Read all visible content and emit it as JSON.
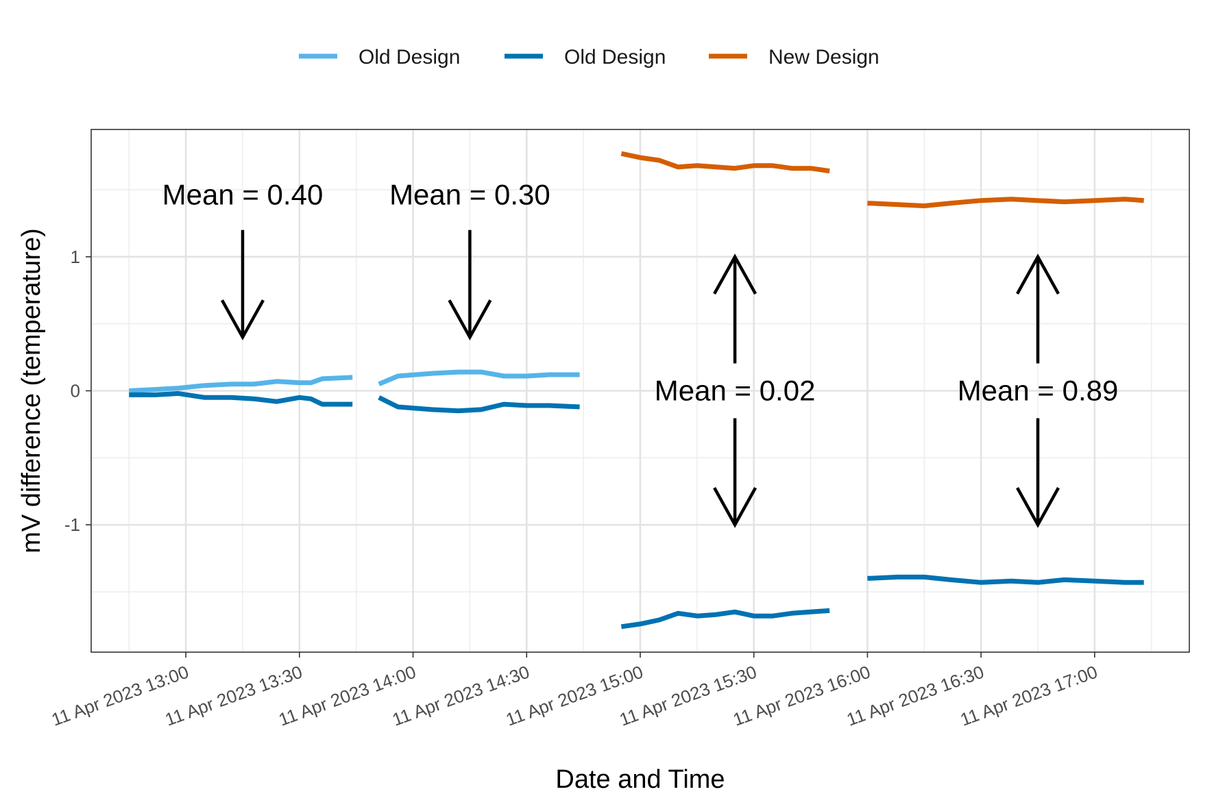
{
  "chart_data": {
    "type": "line",
    "xlabel": "Date and Time",
    "ylabel": "mV difference (temperature)",
    "x_ticks": [
      "11 Apr 2023 13:00",
      "11 Apr 2023 13:30",
      "11 Apr 2023 14:00",
      "11 Apr 2023 14:30",
      "11 Apr 2023 15:00",
      "11 Apr 2023 15:30",
      "11 Apr 2023 16:00",
      "11 Apr 2023 16:30",
      "11 Apr 2023 17:00"
    ],
    "xlim": [
      "11 Apr 2023 12:35",
      "11 Apr 2023 17:25"
    ],
    "y_ticks": [
      -1,
      0,
      1
    ],
    "y_tick_labels": [
      "-1",
      "0",
      "1"
    ],
    "ylim": [
      -1.95,
      1.95
    ],
    "grid": true,
    "legend_position": "top",
    "series": [
      {
        "name": "Old Design",
        "color": "#56B4E9",
        "segments": [
          [
            {
              "x": "11 Apr 2023 12:45",
              "y": 0.0
            },
            {
              "x": "11 Apr 2023 12:52",
              "y": 0.01
            },
            {
              "x": "11 Apr 2023 12:58",
              "y": 0.02
            },
            {
              "x": "11 Apr 2023 13:05",
              "y": 0.04
            },
            {
              "x": "11 Apr 2023 13:12",
              "y": 0.05
            },
            {
              "x": "11 Apr 2023 13:18",
              "y": 0.05
            },
            {
              "x": "11 Apr 2023 13:24",
              "y": 0.07
            },
            {
              "x": "11 Apr 2023 13:30",
              "y": 0.06
            },
            {
              "x": "11 Apr 2023 13:33",
              "y": 0.06
            },
            {
              "x": "11 Apr 2023 13:36",
              "y": 0.09
            },
            {
              "x": "11 Apr 2023 13:44",
              "y": 0.1
            }
          ],
          [
            {
              "x": "11 Apr 2023 13:51",
              "y": 0.05
            },
            {
              "x": "11 Apr 2023 13:56",
              "y": 0.11
            },
            {
              "x": "11 Apr 2023 14:05",
              "y": 0.13
            },
            {
              "x": "11 Apr 2023 14:12",
              "y": 0.14
            },
            {
              "x": "11 Apr 2023 14:18",
              "y": 0.14
            },
            {
              "x": "11 Apr 2023 14:24",
              "y": 0.11
            },
            {
              "x": "11 Apr 2023 14:30",
              "y": 0.11
            },
            {
              "x": "11 Apr 2023 14:36",
              "y": 0.12
            },
            {
              "x": "11 Apr 2023 14:44",
              "y": 0.12
            }
          ]
        ]
      },
      {
        "name": "Old Design",
        "color": "#0072B2",
        "segments": [
          [
            {
              "x": "11 Apr 2023 12:45",
              "y": -0.03
            },
            {
              "x": "11 Apr 2023 12:52",
              "y": -0.03
            },
            {
              "x": "11 Apr 2023 12:58",
              "y": -0.02
            },
            {
              "x": "11 Apr 2023 13:05",
              "y": -0.05
            },
            {
              "x": "11 Apr 2023 13:12",
              "y": -0.05
            },
            {
              "x": "11 Apr 2023 13:18",
              "y": -0.06
            },
            {
              "x": "11 Apr 2023 13:24",
              "y": -0.08
            },
            {
              "x": "11 Apr 2023 13:30",
              "y": -0.05
            },
            {
              "x": "11 Apr 2023 13:33",
              "y": -0.06
            },
            {
              "x": "11 Apr 2023 13:36",
              "y": -0.1
            },
            {
              "x": "11 Apr 2023 13:44",
              "y": -0.1
            }
          ],
          [
            {
              "x": "11 Apr 2023 13:51",
              "y": -0.05
            },
            {
              "x": "11 Apr 2023 13:56",
              "y": -0.12
            },
            {
              "x": "11 Apr 2023 14:05",
              "y": -0.14
            },
            {
              "x": "11 Apr 2023 14:12",
              "y": -0.15
            },
            {
              "x": "11 Apr 2023 14:18",
              "y": -0.14
            },
            {
              "x": "11 Apr 2023 14:24",
              "y": -0.1
            },
            {
              "x": "11 Apr 2023 14:30",
              "y": -0.11
            },
            {
              "x": "11 Apr 2023 14:36",
              "y": -0.11
            },
            {
              "x": "11 Apr 2023 14:44",
              "y": -0.12
            }
          ],
          [
            {
              "x": "11 Apr 2023 14:55",
              "y": -1.76
            },
            {
              "x": "11 Apr 2023 15:00",
              "y": -1.74
            },
            {
              "x": "11 Apr 2023 15:05",
              "y": -1.71
            },
            {
              "x": "11 Apr 2023 15:10",
              "y": -1.66
            },
            {
              "x": "11 Apr 2023 15:15",
              "y": -1.68
            },
            {
              "x": "11 Apr 2023 15:20",
              "y": -1.67
            },
            {
              "x": "11 Apr 2023 15:25",
              "y": -1.65
            },
            {
              "x": "11 Apr 2023 15:30",
              "y": -1.68
            },
            {
              "x": "11 Apr 2023 15:35",
              "y": -1.68
            },
            {
              "x": "11 Apr 2023 15:40",
              "y": -1.66
            },
            {
              "x": "11 Apr 2023 15:45",
              "y": -1.65
            },
            {
              "x": "11 Apr 2023 15:50",
              "y": -1.64
            }
          ],
          [
            {
              "x": "11 Apr 2023 16:00",
              "y": -1.4
            },
            {
              "x": "11 Apr 2023 16:08",
              "y": -1.39
            },
            {
              "x": "11 Apr 2023 16:15",
              "y": -1.39
            },
            {
              "x": "11 Apr 2023 16:22",
              "y": -1.41
            },
            {
              "x": "11 Apr 2023 16:30",
              "y": -1.43
            },
            {
              "x": "11 Apr 2023 16:38",
              "y": -1.42
            },
            {
              "x": "11 Apr 2023 16:45",
              "y": -1.43
            },
            {
              "x": "11 Apr 2023 16:52",
              "y": -1.41
            },
            {
              "x": "11 Apr 2023 17:00",
              "y": -1.42
            },
            {
              "x": "11 Apr 2023 17:08",
              "y": -1.43
            },
            {
              "x": "11 Apr 2023 17:13",
              "y": -1.43
            }
          ]
        ]
      },
      {
        "name": "New Design",
        "color": "#D55E00",
        "segments": [
          [
            {
              "x": "11 Apr 2023 14:55",
              "y": 1.77
            },
            {
              "x": "11 Apr 2023 15:00",
              "y": 1.74
            },
            {
              "x": "11 Apr 2023 15:05",
              "y": 1.72
            },
            {
              "x": "11 Apr 2023 15:10",
              "y": 1.67
            },
            {
              "x": "11 Apr 2023 15:15",
              "y": 1.68
            },
            {
              "x": "11 Apr 2023 15:20",
              "y": 1.67
            },
            {
              "x": "11 Apr 2023 15:25",
              "y": 1.66
            },
            {
              "x": "11 Apr 2023 15:30",
              "y": 1.68
            },
            {
              "x": "11 Apr 2023 15:35",
              "y": 1.68
            },
            {
              "x": "11 Apr 2023 15:40",
              "y": 1.66
            },
            {
              "x": "11 Apr 2023 15:45",
              "y": 1.66
            },
            {
              "x": "11 Apr 2023 15:50",
              "y": 1.64
            }
          ],
          [
            {
              "x": "11 Apr 2023 16:00",
              "y": 1.4
            },
            {
              "x": "11 Apr 2023 16:08",
              "y": 1.39
            },
            {
              "x": "11 Apr 2023 16:15",
              "y": 1.38
            },
            {
              "x": "11 Apr 2023 16:22",
              "y": 1.4
            },
            {
              "x": "11 Apr 2023 16:30",
              "y": 1.42
            },
            {
              "x": "11 Apr 2023 16:38",
              "y": 1.43
            },
            {
              "x": "11 Apr 2023 16:45",
              "y": 1.42
            },
            {
              "x": "11 Apr 2023 16:52",
              "y": 1.41
            },
            {
              "x": "11 Apr 2023 17:00",
              "y": 1.42
            },
            {
              "x": "11 Apr 2023 17:08",
              "y": 1.43
            },
            {
              "x": "11 Apr 2023 17:13",
              "y": 1.42
            }
          ]
        ]
      }
    ],
    "annotations": [
      {
        "text": "Mean = 0.40",
        "arrow": "down",
        "x": "11 Apr 2023 13:15",
        "arrow_from_y": 1.2,
        "arrow_to_y": 0.4
      },
      {
        "text": "Mean = 0.30",
        "arrow": "down",
        "x": "11 Apr 2023 14:15",
        "arrow_from_y": 1.2,
        "arrow_to_y": 0.4
      },
      {
        "text": "Mean = 0.02",
        "arrow": "both",
        "x": "11 Apr 2023 15:25",
        "arrow_up_to_y": 1.0,
        "arrow_down_to_y": -1.0
      },
      {
        "text": "Mean = 0.89",
        "arrow": "both",
        "x": "11 Apr 2023 16:45",
        "arrow_up_to_y": 1.0,
        "arrow_down_to_y": -1.0
      }
    ]
  }
}
